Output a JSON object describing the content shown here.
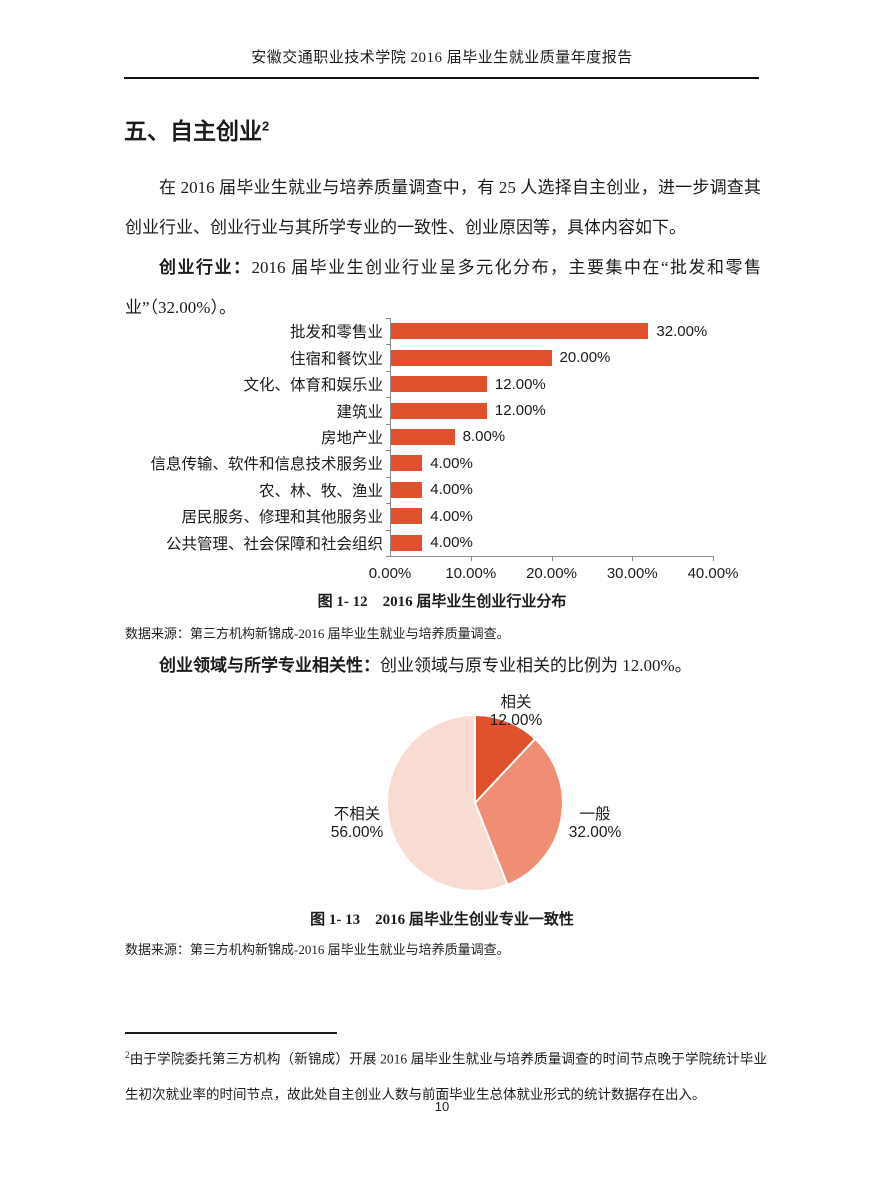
{
  "page": {
    "header": "安徽交通职业技术学院 2016 届毕业生就业质量年度报告",
    "section_title": "五、自主创业",
    "section_title_superscript": "2",
    "paragraph1": "在 2016 届毕业生就业与培养质量调查中，有 25 人选择自主创业，进一步调查其创业行业、创业行业与其所学专业的一致性、创业原因等，具体内容如下。",
    "paragraph2_lead": "创业行业：",
    "paragraph2_rest": "2016 届毕业生创业行业呈多元化分布，主要集中在“批发和零售业”（32.00%）。",
    "caption1": "图 1- 12　2016 届毕业生创业行业分布",
    "datasource1": "数据来源：第三方机构新锦成-2016 届毕业生就业与培养质量调查。",
    "paragraph3_lead": "创业领域与所学专业相关性：",
    "paragraph3_rest": "创业领域与原专业相关的比例为 12.00%。",
    "caption2": "图 1- 13　2016 届毕业生创业专业一致性",
    "datasource2": "数据来源：第三方机构新锦成-2016 届毕业生就业与培养质量调查。",
    "footnote_marker": "2",
    "footnote": "由于学院委托第三方机构（新锦成）开展 2016 届毕业生就业与培养质量调查的时间节点晚于学院统计毕业生初次就业率的时间节点，故此处自主创业人数与前面毕业生总体就业形式的统计数据存在出入。",
    "page_number": "10"
  },
  "colors": {
    "accent": "#E2512D",
    "pie_medium": "#EF8E74",
    "pie_light": "#F8DBD1",
    "axis": "#8C8C8C"
  },
  "chart_data": [
    {
      "type": "bar",
      "orientation": "horizontal",
      "title": "图 1- 12　2016 届毕业生创业行业分布",
      "categories": [
        "批发和零售业",
        "住宿和餐饮业",
        "文化、体育和娱乐业",
        "建筑业",
        "房地产业",
        "信息传输、软件和信息技术服务业",
        "农、林、牧、渔业",
        "居民服务、修理和其他服务业",
        "公共管理、社会保障和社会组织"
      ],
      "values": [
        32,
        20,
        12,
        12,
        8,
        4,
        4,
        4,
        4
      ],
      "data_labels": [
        "32.00%",
        "20.00%",
        "12.00%",
        "12.00%",
        "8.00%",
        "4.00%",
        "4.00%",
        "4.00%",
        "4.00%"
      ],
      "xlim": [
        0,
        40
      ],
      "x_ticks": [
        "0.00%",
        "10.00%",
        "20.00%",
        "30.00%",
        "40.00%"
      ],
      "bar_color": "#E2512D",
      "grid": false,
      "legend": "none"
    },
    {
      "type": "pie",
      "title": "图 1- 13　2016 届毕业生创业专业一致性",
      "start_angle_deg": 0,
      "direction": "clockwise",
      "slices": [
        {
          "label": "相关",
          "value": 12,
          "display": "12.00%",
          "color": "#E2512D"
        },
        {
          "label": "一般",
          "value": 32,
          "display": "32.00%",
          "color": "#EF8E74"
        },
        {
          "label": "不相关",
          "value": 56,
          "display": "56.00%",
          "color": "#F8DBD1"
        }
      ]
    }
  ]
}
